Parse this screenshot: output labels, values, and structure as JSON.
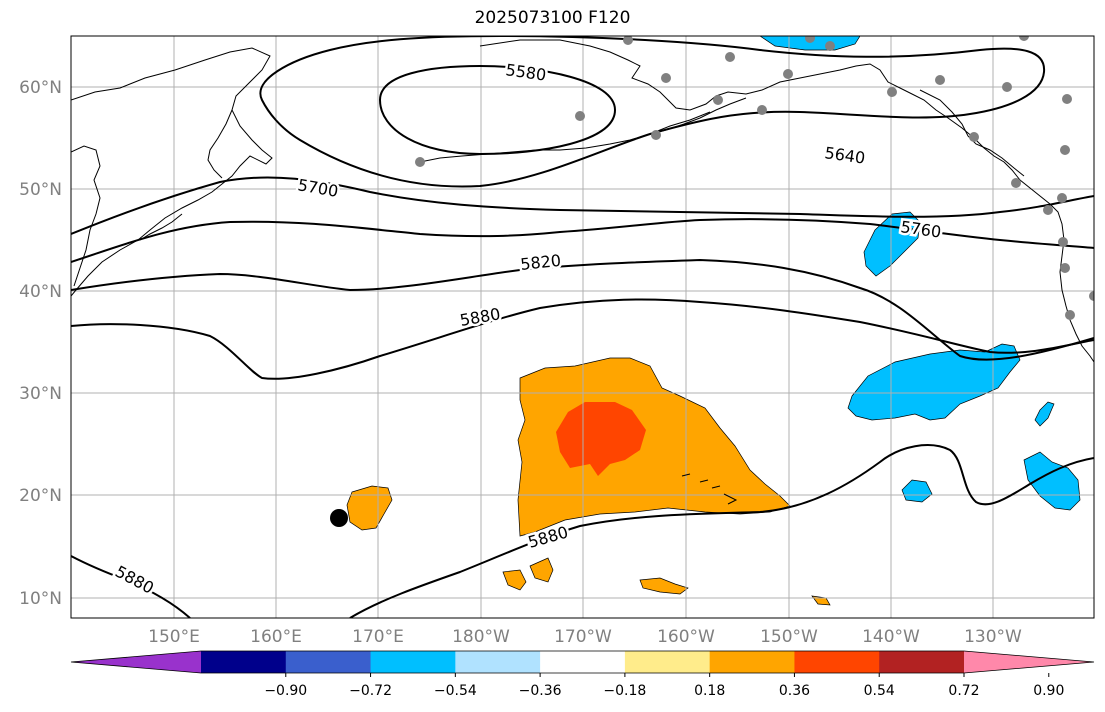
{
  "title": "2025073100 F120",
  "lat_labels": [
    "60°N",
    "50°N",
    "40°N",
    "30°N",
    "20°N",
    "10°N"
  ],
  "lon_labels": [
    "150°E",
    "160°E",
    "170°E",
    "180°W",
    "170°W",
    "160°W",
    "150°W",
    "140°W",
    "130°W"
  ],
  "contour_labels": [
    "5580",
    "5640",
    "5700",
    "5760",
    "5820",
    "5880",
    "5880",
    "5880"
  ],
  "colorbar": {
    "ticks": [
      "−0.90",
      "−0.72",
      "−0.54",
      "−0.36",
      "−0.18",
      "0.18",
      "0.36",
      "0.54",
      "0.72",
      "0.90"
    ],
    "colors": [
      "#9932cc",
      "#00008b",
      "#3a5fcd",
      "#00bfff",
      "#b0e2ff",
      "#ffffff",
      "#ffec8b",
      "#ffa500",
      "#ff4500",
      "#b22222",
      "#ff88aa"
    ]
  },
  "colors": {
    "positive_anomaly": "#ffa500",
    "strong_positive_anomaly": "#ff4500",
    "negative_anomaly": "#00bfff",
    "station_marker": "#808080",
    "storm_marker": "#000000"
  }
}
